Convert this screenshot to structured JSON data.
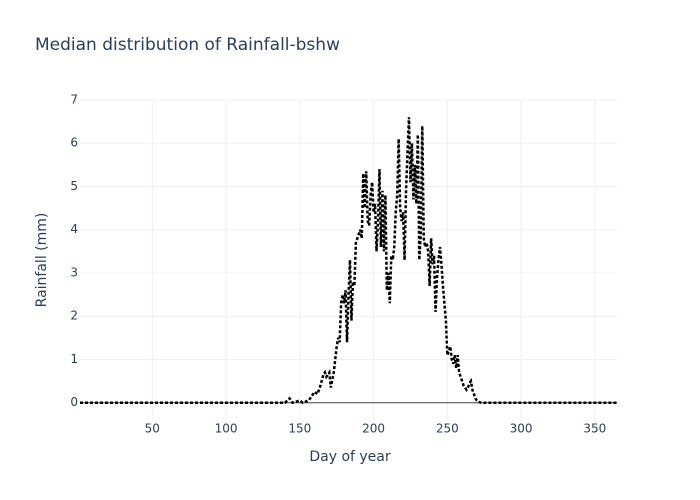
{
  "chart_data": {
    "type": "line",
    "title": "Median distribution of Rainfall-bshw",
    "x_label": "Day of year",
    "y_label": "Rainfall (mm)",
    "x": [
      1,
      140,
      143,
      145,
      150,
      152,
      156,
      158,
      160,
      162,
      164,
      166,
      167,
      168,
      170,
      171,
      173,
      175,
      176,
      177,
      178,
      179,
      180,
      181,
      182,
      183,
      184,
      185,
      186,
      187,
      188,
      189,
      190,
      191,
      192,
      193,
      194,
      195,
      196,
      197,
      198,
      199,
      200,
      201,
      202,
      203,
      204,
      205,
      206,
      207,
      208,
      209,
      210,
      211,
      212,
      213,
      214,
      215,
      216,
      217,
      218,
      219,
      220,
      221,
      222,
      223,
      224,
      225,
      226,
      227,
      228,
      229,
      230,
      231,
      232,
      233,
      234,
      235,
      236,
      237,
      238,
      239,
      240,
      241,
      242,
      243,
      244,
      245,
      246,
      247,
      248,
      249,
      250,
      251,
      252,
      253,
      254,
      255,
      256,
      257,
      258,
      259,
      260,
      261,
      262,
      263,
      264,
      265,
      266,
      267,
      268,
      269,
      270,
      271,
      273,
      365
    ],
    "series": [
      {
        "color": "#000000",
        "values": [
          0,
          0,
          0.1,
          0,
          0.05,
          0,
          0.05,
          0.15,
          0.25,
          0.2,
          0.4,
          0.65,
          0.7,
          0.6,
          0.7,
          0.35,
          0.7,
          1.3,
          1.5,
          1.4,
          2.3,
          2.5,
          2.3,
          2.6,
          1.4,
          2.5,
          3.3,
          1.9,
          2.8,
          2.7,
          3.7,
          3.8,
          3.9,
          4.0,
          3.8,
          5.3,
          4.5,
          5.35,
          4.2,
          4.1,
          4.8,
          5.1,
          4.4,
          4.6,
          3.5,
          4.2,
          5.4,
          3.6,
          4.9,
          3.5,
          4.8,
          2.6,
          3.0,
          2.3,
          3.4,
          3.3,
          3.6,
          4.4,
          4.8,
          6.1,
          4.5,
          4.2,
          4.4,
          3.3,
          4.9,
          5.8,
          6.6,
          5.1,
          6.0,
          4.7,
          5.5,
          4.6,
          6.2,
          3.3,
          3.9,
          6.4,
          3.8,
          3.6,
          3.7,
          3.5,
          2.7,
          3.8,
          3.2,
          3.4,
          2.1,
          2.9,
          3.3,
          3.6,
          3.2,
          2.7,
          2.3,
          1.9,
          1.1,
          1.2,
          1.3,
          1.0,
          0.9,
          1.1,
          0.8,
          1.1,
          0.7,
          0.6,
          0.5,
          0.4,
          0.35,
          0.3,
          0.35,
          0.45,
          0.5,
          0.3,
          0.2,
          0.1,
          0.05,
          0.02,
          0,
          0
        ]
      }
    ],
    "xlim": [
      1,
      365
    ],
    "xticks": [
      50,
      100,
      150,
      200,
      250,
      300,
      350
    ],
    "ylim": [
      -0.4,
      7
    ],
    "yticks": [
      0,
      1,
      2,
      3,
      4,
      5,
      6,
      7
    ],
    "grid": true
  }
}
